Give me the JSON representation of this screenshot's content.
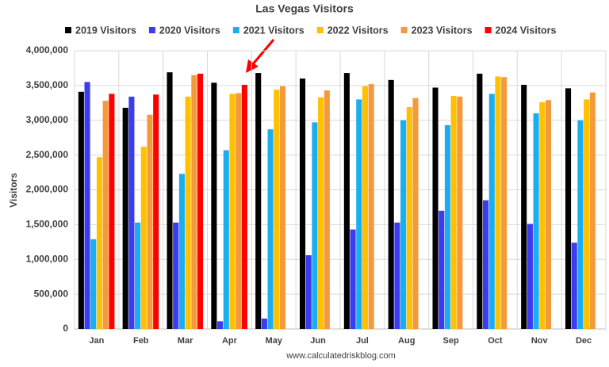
{
  "chart_data": {
    "type": "bar",
    "title": "Las Vegas Visitors",
    "y_label": "Visitors",
    "source": "www.calculatedriskblog.com",
    "categories": [
      "Jan",
      "Feb",
      "Mar",
      "Apr",
      "May",
      "Jun",
      "Jul",
      "Aug",
      "Sep",
      "Oct",
      "Nov",
      "Dec"
    ],
    "series": [
      {
        "name": "2019 Visitors",
        "color": "#000000",
        "values": [
          3410000,
          3180000,
          3690000,
          3540000,
          3680000,
          3600000,
          3680000,
          3580000,
          3470000,
          3670000,
          3510000,
          3460000
        ]
      },
      {
        "name": "2020 Visitors",
        "color": "#3b3bf0",
        "values": [
          3550000,
          3340000,
          1530000,
          110000,
          150000,
          1060000,
          1430000,
          1530000,
          1700000,
          1850000,
          1510000,
          1240000
        ]
      },
      {
        "name": "2021 Visitors",
        "color": "#1aaef0",
        "values": [
          1290000,
          1530000,
          2230000,
          2570000,
          2870000,
          2970000,
          3300000,
          3000000,
          2930000,
          3380000,
          3100000,
          3000000
        ]
      },
      {
        "name": "2022 Visitors",
        "color": "#ffc000",
        "values": [
          2470000,
          2620000,
          3340000,
          3380000,
          3440000,
          3330000,
          3490000,
          3190000,
          3350000,
          3630000,
          3260000,
          3300000
        ]
      },
      {
        "name": "2023 Visitors",
        "color": "#f59a3c",
        "values": [
          3280000,
          3080000,
          3650000,
          3390000,
          3490000,
          3430000,
          3520000,
          3320000,
          3340000,
          3620000,
          3290000,
          3400000
        ]
      },
      {
        "name": "2024 Visitors",
        "color": "#ff0000",
        "values": [
          3380000,
          3370000,
          3670000,
          3510000,
          null,
          null,
          null,
          null,
          null,
          null,
          null,
          null
        ]
      }
    ],
    "ylim": [
      0,
      4000000
    ],
    "yticks": [
      0,
      {
        "value": 500000,
        "label": "500,000"
      },
      {
        "value": 1000000,
        "label": "1,000,000"
      },
      {
        "value": 1500000,
        "label": "1,500,000"
      },
      {
        "value": 2000000,
        "label": "2,000,000"
      },
      {
        "value": 2500000,
        "label": "2,500,000"
      },
      {
        "value": 3000000,
        "label": "3,000,000"
      },
      {
        "value": 3500000,
        "label": "3,500,000"
      },
      {
        "value": 4000000,
        "label": "4,000,000"
      }
    ],
    "grid": true
  }
}
